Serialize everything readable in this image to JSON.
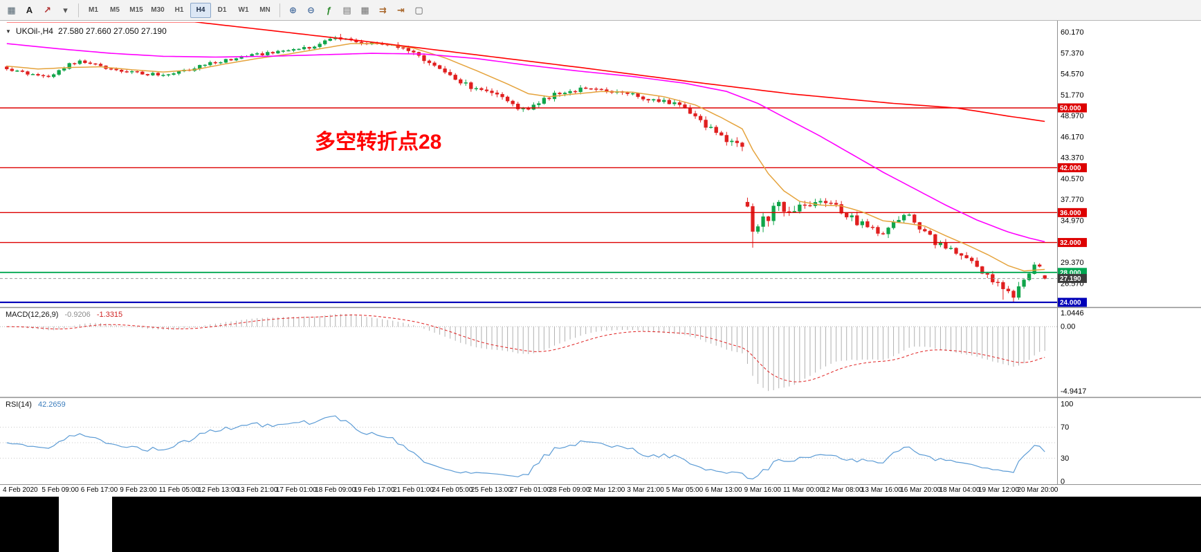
{
  "toolbar": {
    "left_icons": [
      {
        "name": "chart-grid-icon",
        "glyph": "▦",
        "color": "#51636f"
      },
      {
        "name": "text-tool-icon",
        "glyph": "A",
        "color": "#222222"
      },
      {
        "name": "draw-tool-icon",
        "glyph": "↗",
        "color": "#b03030"
      },
      {
        "name": "tools-dropdown-icon",
        "glyph": "▾",
        "color": "#555555"
      }
    ],
    "timeframes": {
      "items": [
        "M1",
        "M5",
        "M15",
        "M30",
        "H1",
        "H4",
        "D1",
        "W1",
        "MN"
      ],
      "active": "H4"
    },
    "right_icons": [
      {
        "name": "zoom-in-icon",
        "glyph": "⊕",
        "color": "#4a6f9f"
      },
      {
        "name": "zoom-out-icon",
        "glyph": "⊖",
        "color": "#4a6f9f"
      },
      {
        "name": "indicators-icon",
        "glyph": "ƒ",
        "color": "#2e8b2e"
      },
      {
        "name": "templates-icon",
        "glyph": "▤",
        "color": "#6f6f6f"
      },
      {
        "name": "tile-windows-icon",
        "glyph": "▦",
        "color": "#6f6f6f"
      },
      {
        "name": "auto-scroll-icon",
        "glyph": "⇉",
        "color": "#a8662a"
      },
      {
        "name": "chart-shift-icon",
        "glyph": "⇥",
        "color": "#a8662a"
      },
      {
        "name": "new-window-icon",
        "glyph": "▢",
        "color": "#555555"
      }
    ]
  },
  "chart": {
    "symbol_timeframe": "UKOil-,H4",
    "ohlc_text": "27.580 27.660 27.050 27.190",
    "annotation_text": "多空转折点28",
    "annotation_color": "#ff0000"
  },
  "indicators": {
    "macd": {
      "label": "MACD(12,26,9)",
      "value_main": "-0.9206",
      "value_signal": "-1.3315"
    },
    "rsi": {
      "label": "RSI(14)",
      "value": "42.2659"
    }
  },
  "chart_data": {
    "type": "candlestick",
    "symbol": "UKOil-",
    "timeframe": "H4",
    "num_candles": 200,
    "seed": 20200320,
    "price_top": 61.47,
    "price_bottom": 23.45,
    "up_color": "#10a54a",
    "down_color": "#e01f1f",
    "gap_threshold": 2.5,
    "last_candle": {
      "open": 27.58,
      "high": 27.66,
      "low": 27.05,
      "close": 27.19
    },
    "close_anchors": [
      [
        0,
        55.3
      ],
      [
        4,
        54.6
      ],
      [
        8,
        54.2
      ],
      [
        12,
        55.8
      ],
      [
        14,
        56.3
      ],
      [
        18,
        55.6
      ],
      [
        22,
        54.9
      ],
      [
        26,
        54.6
      ],
      [
        30,
        54.4
      ],
      [
        34,
        54.9
      ],
      [
        38,
        55.8
      ],
      [
        42,
        56.4
      ],
      [
        46,
        56.9
      ],
      [
        50,
        57.3
      ],
      [
        54,
        57.7
      ],
      [
        58,
        58.1
      ],
      [
        62,
        59.2
      ],
      [
        64,
        59.4
      ],
      [
        66,
        58.9
      ],
      [
        70,
        58.6
      ],
      [
        74,
        58.3
      ],
      [
        78,
        57.2
      ],
      [
        82,
        55.6
      ],
      [
        86,
        53.8
      ],
      [
        90,
        52.4
      ],
      [
        94,
        51.6
      ],
      [
        97,
        50.3
      ],
      [
        100,
        49.9
      ],
      [
        103,
        51.3
      ],
      [
        106,
        52.0
      ],
      [
        110,
        52.4
      ],
      [
        114,
        52.5
      ],
      [
        118,
        52.0
      ],
      [
        122,
        51.4
      ],
      [
        126,
        50.8
      ],
      [
        130,
        50.1
      ],
      [
        133,
        48.3
      ],
      [
        136,
        46.6
      ],
      [
        139,
        45.5
      ],
      [
        141,
        45.1
      ],
      [
        142,
        36.6
      ],
      [
        143,
        34.2
      ],
      [
        144,
        33.6
      ],
      [
        145,
        34.8
      ],
      [
        146,
        35.6
      ],
      [
        148,
        37.0
      ],
      [
        150,
        36.2
      ],
      [
        152,
        36.9
      ],
      [
        154,
        37.4
      ],
      [
        156,
        38.0
      ],
      [
        158,
        37.3
      ],
      [
        160,
        36.4
      ],
      [
        162,
        35.2
      ],
      [
        164,
        34.4
      ],
      [
        166,
        33.6
      ],
      [
        168,
        33.2
      ],
      [
        170,
        34.6
      ],
      [
        172,
        35.7
      ],
      [
        174,
        34.9
      ],
      [
        176,
        33.3
      ],
      [
        178,
        32.1
      ],
      [
        180,
        31.2
      ],
      [
        182,
        30.4
      ],
      [
        184,
        29.9
      ],
      [
        186,
        28.8
      ],
      [
        188,
        27.7
      ],
      [
        190,
        26.2
      ],
      [
        191,
        25.4
      ],
      [
        193,
        25.0
      ],
      [
        195,
        26.9
      ],
      [
        196,
        28.1
      ],
      [
        197,
        29.2
      ],
      [
        198,
        28.8
      ],
      [
        199,
        27.2
      ]
    ],
    "volatility_anchors": [
      [
        0,
        0.28
      ],
      [
        40,
        0.25
      ],
      [
        60,
        0.3
      ],
      [
        80,
        0.45
      ],
      [
        100,
        0.5
      ],
      [
        120,
        0.35
      ],
      [
        133,
        0.55
      ],
      [
        141,
        0.7
      ],
      [
        143,
        1.1
      ],
      [
        150,
        0.9
      ],
      [
        160,
        0.7
      ],
      [
        175,
        0.6
      ],
      [
        188,
        0.7
      ],
      [
        194,
        0.8
      ],
      [
        199,
        0.5
      ]
    ],
    "wick_overrides": [
      {
        "i": 64,
        "high": 59.9
      },
      {
        "i": 143,
        "low": 31.3
      },
      {
        "i": 191,
        "low": 24.35
      }
    ],
    "hlines": [
      {
        "price": 50.0,
        "label": "50.000",
        "color": "#dd0000",
        "width": 1.4
      },
      {
        "price": 42.0,
        "label": "42.000",
        "color": "#dd0000",
        "width": 1.4
      },
      {
        "price": 36.0,
        "label": "36.000",
        "color": "#dd0000",
        "width": 1.4
      },
      {
        "price": 32.0,
        "label": "32.000",
        "color": "#dd0000",
        "width": 1.4
      },
      {
        "price": 28.0,
        "label": "28.000",
        "color": "#00a651",
        "width": 1.8
      },
      {
        "price": 24.0,
        "label": "24.000",
        "color": "#0000b8",
        "width": 2.2
      }
    ],
    "bid": {
      "price": 27.19,
      "label": "27.190",
      "color": "#3c3c3c"
    },
    "price_scale_labels": [
      "60.170",
      "57.370",
      "54.570",
      "51.770",
      "48.970",
      "46.170",
      "43.370",
      "40.570",
      "37.770",
      "34.970",
      "29.370",
      "26.570"
    ],
    "moving_averages": [
      {
        "name": "ma-fast",
        "color": "#e5a33c",
        "width": 1.5,
        "anchors": [
          [
            0,
            55.6
          ],
          [
            6,
            55.2
          ],
          [
            12,
            55.4
          ],
          [
            18,
            55.5
          ],
          [
            24,
            55.1
          ],
          [
            30,
            54.8
          ],
          [
            36,
            55.1
          ],
          [
            42,
            55.9
          ],
          [
            48,
            56.6
          ],
          [
            54,
            57.2
          ],
          [
            60,
            57.9
          ],
          [
            66,
            58.6
          ],
          [
            72,
            58.6
          ],
          [
            78,
            58.0
          ],
          [
            84,
            56.7
          ],
          [
            90,
            55.0
          ],
          [
            96,
            53.2
          ],
          [
            100,
            51.9
          ],
          [
            104,
            51.5
          ],
          [
            108,
            51.8
          ],
          [
            114,
            52.2
          ],
          [
            120,
            52.1
          ],
          [
            126,
            51.5
          ],
          [
            132,
            50.4
          ],
          [
            137,
            48.7
          ],
          [
            141,
            47.2
          ],
          [
            143,
            44.4
          ],
          [
            146,
            41.2
          ],
          [
            149,
            38.9
          ],
          [
            152,
            37.5
          ],
          [
            156,
            37.0
          ],
          [
            160,
            36.9
          ],
          [
            164,
            36.1
          ],
          [
            168,
            34.9
          ],
          [
            172,
            34.6
          ],
          [
            176,
            34.2
          ],
          [
            180,
            32.9
          ],
          [
            184,
            31.7
          ],
          [
            188,
            30.4
          ],
          [
            192,
            28.9
          ],
          [
            195,
            28.2
          ],
          [
            199,
            28.4
          ]
        ]
      },
      {
        "name": "ma-mid",
        "color": "#ff00ff",
        "width": 1.6,
        "anchors": [
          [
            0,
            58.6
          ],
          [
            10,
            57.9
          ],
          [
            20,
            57.3
          ],
          [
            30,
            56.9
          ],
          [
            40,
            56.8
          ],
          [
            50,
            56.9
          ],
          [
            60,
            57.1
          ],
          [
            70,
            57.3
          ],
          [
            80,
            57.2
          ],
          [
            90,
            56.6
          ],
          [
            100,
            55.7
          ],
          [
            110,
            54.9
          ],
          [
            120,
            54.2
          ],
          [
            130,
            53.3
          ],
          [
            138,
            52.2
          ],
          [
            144,
            50.6
          ],
          [
            150,
            48.4
          ],
          [
            156,
            46.2
          ],
          [
            162,
            43.8
          ],
          [
            168,
            41.4
          ],
          [
            174,
            39.2
          ],
          [
            180,
            37.0
          ],
          [
            186,
            35.0
          ],
          [
            192,
            33.4
          ],
          [
            196,
            32.6
          ],
          [
            199,
            32.1
          ]
        ]
      },
      {
        "name": "ma-slow",
        "color": "#ff0000",
        "width": 1.6,
        "anchors": [
          [
            36,
            61.5
          ],
          [
            50,
            60.4
          ],
          [
            70,
            58.8
          ],
          [
            90,
            57.1
          ],
          [
            110,
            55.4
          ],
          [
            130,
            53.6
          ],
          [
            150,
            51.9
          ],
          [
            170,
            50.6
          ],
          [
            182,
            50.0
          ],
          [
            192,
            48.9
          ],
          [
            199,
            48.2
          ]
        ]
      }
    ],
    "time_labels": [
      "4 Feb 2020",
      "5 Feb 09:00",
      "6 Feb 17:00",
      "9 Feb 23:00",
      "11 Feb 05:00",
      "12 Feb 13:00",
      "13 Feb 21:00",
      "17 Feb 01:00",
      "18 Feb 09:00",
      "19 Feb 17:00",
      "21 Feb 01:00",
      "24 Feb 05:00",
      "25 Feb 13:00",
      "27 Feb 01:00",
      "28 Feb 09:00",
      "2 Mar 12:00",
      "3 Mar 21:00",
      "5 Mar 05:00",
      "6 Mar 13:00",
      "9 Mar 16:00",
      "11 Mar 00:00",
      "12 Mar 08:00",
      "13 Mar 16:00",
      "16 Mar 20:00",
      "18 Mar 04:00",
      "19 Mar 12:00",
      "20 Mar 20:00"
    ],
    "macd": {
      "fast": 12,
      "slow": 26,
      "signal": 9,
      "histogram_color": "#b0b0b0",
      "signal_color": "#e02020",
      "scale_labels": [
        "1.0446",
        "0.00",
        "-4.9417"
      ]
    },
    "rsi": {
      "period": 14,
      "color": "#5b9bd5",
      "levels": [
        70,
        50,
        30
      ],
      "scale_labels": [
        100,
        70,
        30,
        0
      ]
    }
  }
}
